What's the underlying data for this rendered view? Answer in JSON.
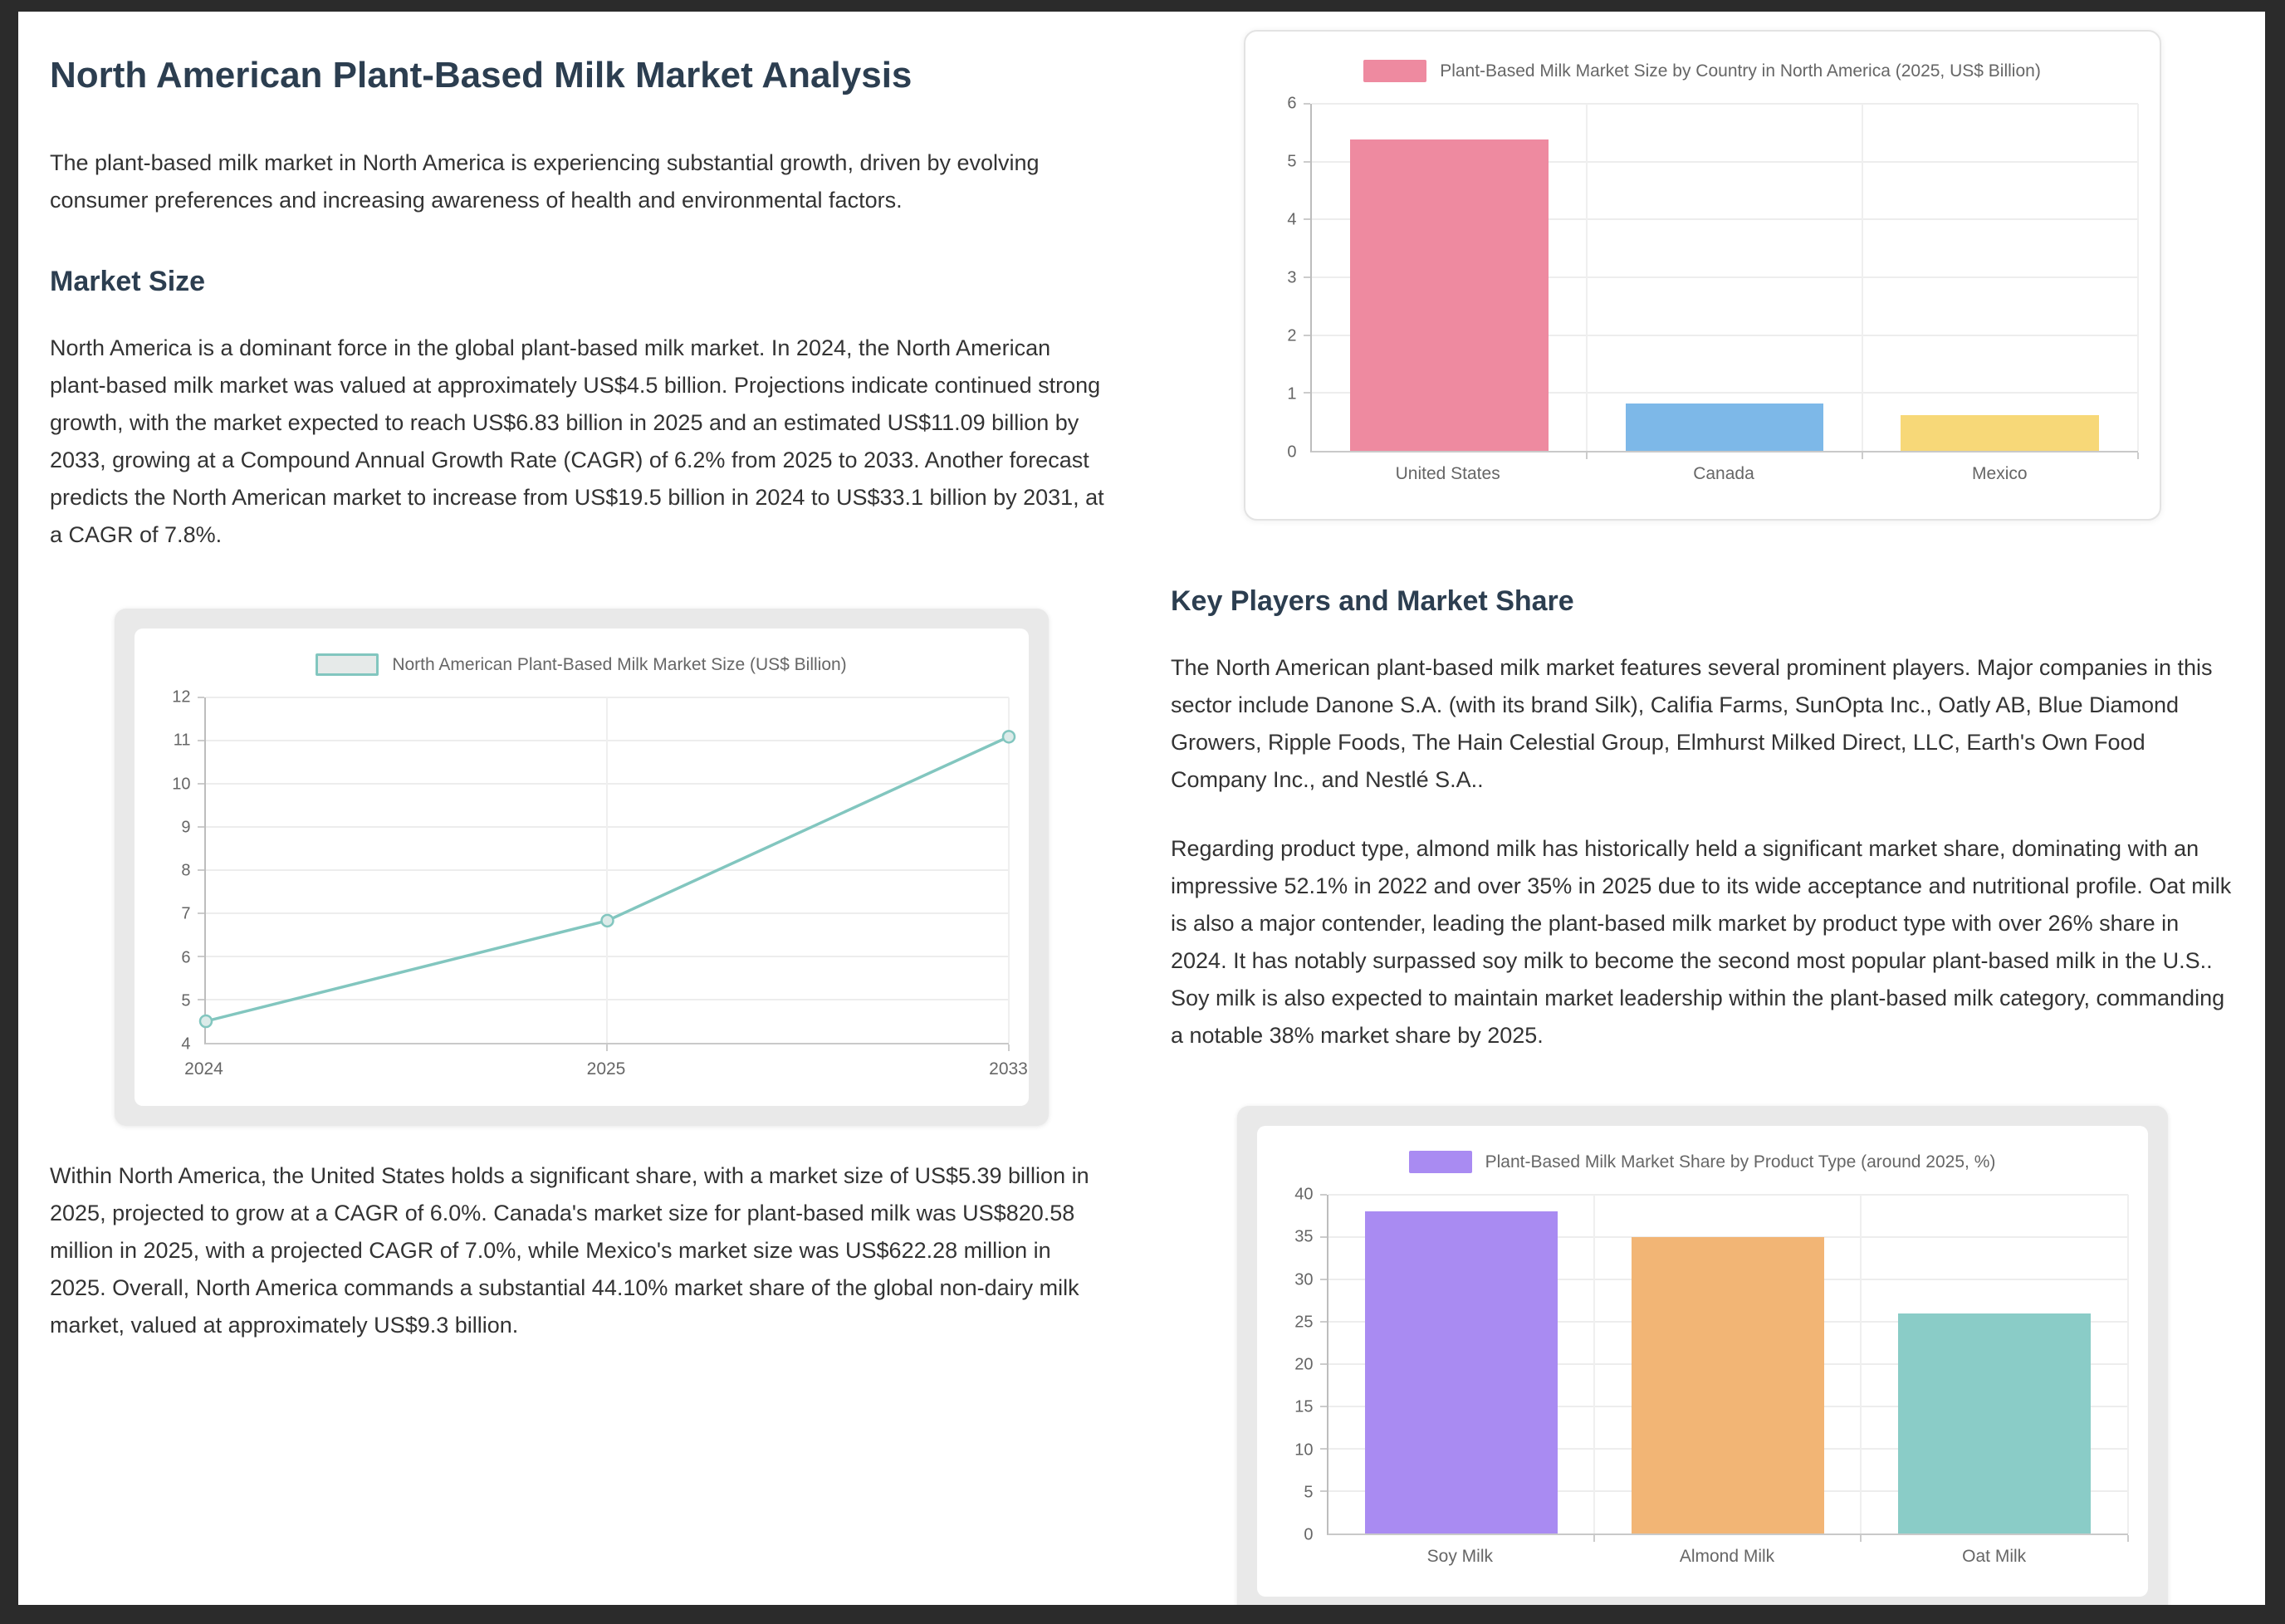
{
  "page": {
    "title": "North American Plant-Based Milk Market Analysis",
    "intro": "The plant-based milk market in North America is experiencing substantial growth, driven by evolving consumer preferences and increasing awareness of health and environmental factors.",
    "sections": {
      "market_size": {
        "heading": "Market Size",
        "para1": "North America is a dominant force in the global plant-based milk market. In 2024, the North American plant-based milk market was valued at approximately US$4.5 billion. Projections indicate continued strong growth, with the market expected to reach US$6.83 billion in 2025 and an estimated US$11.09 billion by 2033, growing at a Compound Annual Growth Rate (CAGR) of 6.2% from 2025 to 2033. Another forecast predicts the North American market to increase from US$19.5 billion in 2024 to US$33.1 billion by 2031, at a CAGR of 7.8%.",
        "para2": "Within North America, the United States holds a significant share, with a market size of US$5.39 billion in 2025, projected to grow at a CAGR of 6.0%. Canada's market size for plant-based milk was US$820.58 million in 2025, with a projected CAGR of 7.0%, while Mexico's market size was US$622.28 million in 2025. Overall, North America commands a substantial 44.10% market share of the global non-dairy milk market, valued at approximately US$9.3 billion."
      },
      "key_players": {
        "heading": "Key Players and Market Share",
        "para1": "The North American plant-based milk market features several prominent players. Major companies in this sector include Danone S.A. (with its brand Silk), Califia Farms, SunOpta Inc., Oatly AB, Blue Diamond Growers, Ripple Foods, The Hain Celestial Group, Elmhurst Milked Direct, LLC, Earth's Own Food Company Inc., and Nestlé S.A..",
        "para2": "Regarding product type, almond milk has historically held a significant market share, dominating with an impressive 52.1% in 2022 and over 35% in 2025 due to its wide acceptance and nutritional profile. Oat milk is also a major contender, leading the plant-based milk market by product type with over 26% share in 2024. It has notably surpassed soy milk to become the second most popular plant-based milk in the U.S.. Soy milk is also expected to maintain market leadership within the plant-based milk category, commanding a notable 38% market share by 2025."
      }
    }
  },
  "colors": {
    "frame_background": "#2b2b2b",
    "page_background": "#ffffff",
    "heading": "#2c3e50",
    "body_text": "#333333",
    "chart_text": "#666666"
  },
  "chart_data": [
    {
      "id": "market-size-line",
      "type": "line",
      "title": "North American Plant-Based Milk Market Size (US$ Billion)",
      "categories": [
        "2024",
        "2025",
        "2033"
      ],
      "values": [
        4.5,
        6.83,
        11.09
      ],
      "ylim": [
        4,
        12
      ],
      "ytick_step": 1,
      "line_color": "#82c6bf",
      "marker_fill": "#dcebe9",
      "legend_fill": "#e6eae9",
      "legend_position": "top",
      "grid": true
    },
    {
      "id": "country-bar",
      "type": "bar",
      "title": "Plant-Based Milk Market Size by Country in North America (2025, US$ Billion)",
      "categories": [
        "United States",
        "Canada",
        "Mexico"
      ],
      "values": [
        5.39,
        0.82,
        0.62
      ],
      "colors": [
        "#ee8aa0",
        "#7db8e8",
        "#f7d878"
      ],
      "legend_color": "#ee8aa0",
      "ylim": [
        0,
        6
      ],
      "ytick_step": 1,
      "legend_position": "top",
      "grid": true
    },
    {
      "id": "product-share-bar",
      "type": "bar",
      "title": "Plant-Based Milk Market Share by Product Type (around 2025, %)",
      "categories": [
        "Soy Milk",
        "Almond Milk",
        "Oat Milk"
      ],
      "values": [
        38,
        35,
        26
      ],
      "colors": [
        "#a98bf2",
        "#f2b575",
        "#8accc7"
      ],
      "legend_color": "#a98bf2",
      "ylim": [
        0,
        40
      ],
      "ytick_step": 5,
      "legend_position": "top",
      "grid": true
    }
  ]
}
